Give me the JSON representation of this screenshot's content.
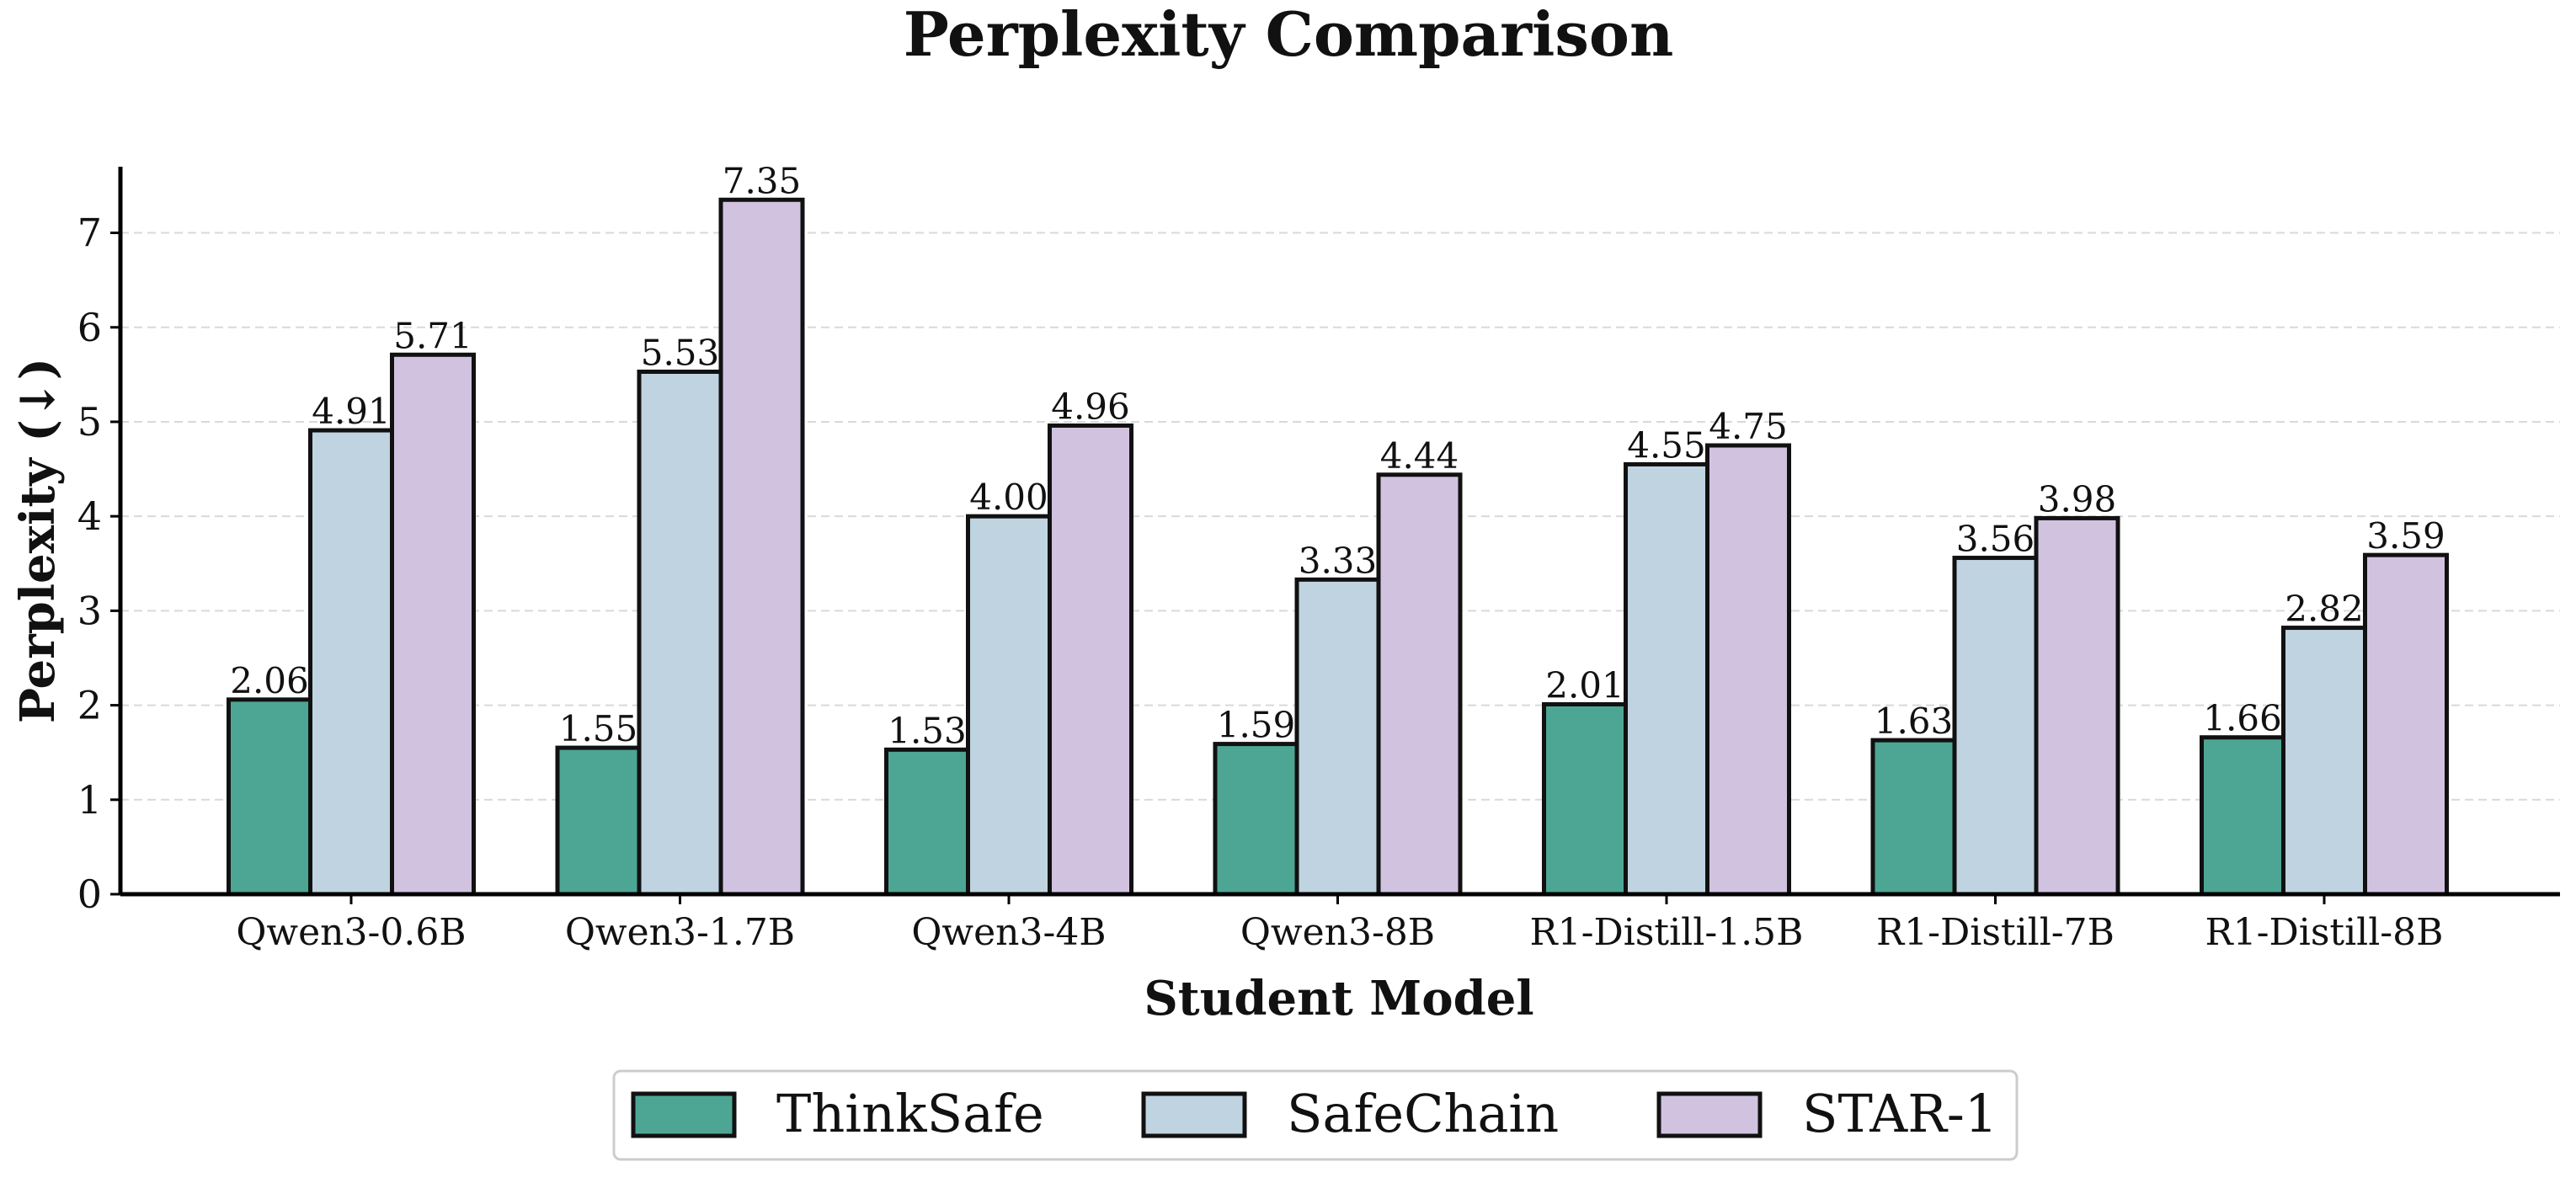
{
  "chart_data": {
    "type": "bar",
    "title": "Perplexity Comparison",
    "xlabel": "Student Model",
    "ylabel": "Perplexity (↓)",
    "categories": [
      "Qwen3-0.6B",
      "Qwen3-1.7B",
      "Qwen3-4B",
      "Qwen3-8B",
      "R1-Distill-1.5B",
      "R1-Distill-7B",
      "R1-Distill-8B"
    ],
    "series": [
      {
        "name": "ThinkSafe",
        "color": "#4da693",
        "values": [
          2.06,
          1.55,
          1.53,
          1.59,
          2.01,
          1.63,
          1.66
        ]
      },
      {
        "name": "SafeChain",
        "color": "#c0d3e0",
        "values": [
          4.91,
          5.53,
          4.0,
          3.33,
          4.55,
          3.56,
          2.82
        ]
      },
      {
        "name": "STAR-1",
        "color": "#d1c3e0",
        "values": [
          5.71,
          7.35,
          4.96,
          4.44,
          4.75,
          3.98,
          3.59
        ]
      }
    ],
    "data_labels": [
      [
        "2.06",
        "1.55",
        "1.53",
        "1.59",
        "2.01",
        "1.63",
        "1.66"
      ],
      [
        "4.91",
        "5.53",
        "4.00",
        "3.33",
        "4.55",
        "3.56",
        "2.82"
      ],
      [
        "5.71",
        "7.35",
        "4.96",
        "4.44",
        "4.75",
        "3.98",
        "3.59"
      ]
    ],
    "yticks": [
      "0",
      "1",
      "2",
      "3",
      "4",
      "5",
      "6",
      "7"
    ],
    "ylim": [
      0,
      7.7
    ],
    "grid": "horizontal dashed",
    "legend_position": "bottom-center"
  }
}
